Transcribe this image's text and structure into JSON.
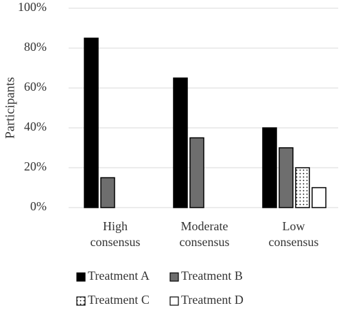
{
  "chart_data": {
    "type": "bar",
    "y_label": "Participants",
    "categories": [
      "High consensus",
      "Moderate consensus",
      "Low consensus"
    ],
    "series": [
      {
        "name": "Treatment A",
        "color": "#000000",
        "values": [
          85,
          65,
          40
        ]
      },
      {
        "name": "Treatment B",
        "color": "#6e6e6e",
        "values": [
          15,
          35,
          30
        ]
      },
      {
        "name": "Treatment C",
        "color": "#ffffff",
        "pattern": "dots",
        "values": [
          null,
          null,
          20
        ]
      },
      {
        "name": "Treatment D",
        "color": "#ffffff",
        "values": [
          null,
          null,
          10
        ]
      }
    ],
    "ylim": [
      0,
      100
    ],
    "yticks": [
      {
        "value": 0,
        "label": "0%"
      },
      {
        "value": 20,
        "label": "20%"
      },
      {
        "value": 40,
        "label": "40%"
      },
      {
        "value": 60,
        "label": "60%"
      },
      {
        "value": 80,
        "label": "80%"
      },
      {
        "value": 100,
        "label": "100%"
      }
    ],
    "grid": true,
    "legend": "bottom"
  }
}
